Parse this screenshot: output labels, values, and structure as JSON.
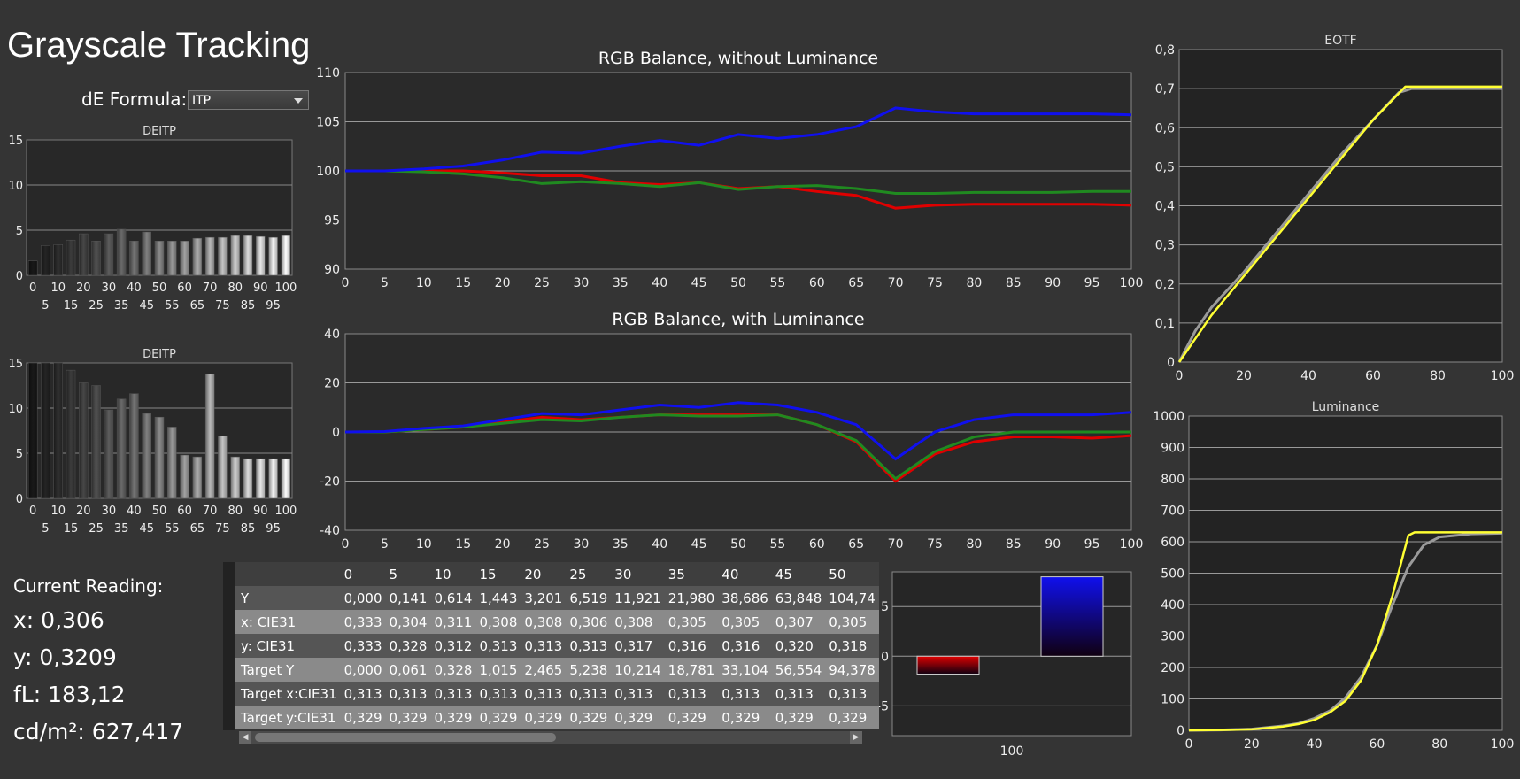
{
  "title": "Grayscale Tracking",
  "de_formula": {
    "label": "dE Formula:",
    "value": "ITP"
  },
  "current_reading": {
    "heading": "Current Reading:",
    "x": "x: 0,306",
    "y": "y: 0,3209",
    "fl": "fL: 183,12",
    "cdm2": "cd/m²: 627,417"
  },
  "colors": {
    "red": "#e00000",
    "green": "#208a20",
    "blue": "#1010ee",
    "yellow": "#ffff33",
    "gray_ref": "#9a9a9a"
  },
  "chart_data": [
    {
      "id": "deitp-top",
      "type": "bar",
      "title": "DEITP",
      "categories": [
        "0",
        "5",
        "10",
        "15",
        "20",
        "25",
        "30",
        "35",
        "40",
        "45",
        "50",
        "55",
        "60",
        "65",
        "70",
        "75",
        "80",
        "85",
        "90",
        "95",
        "100"
      ],
      "values": [
        1.6,
        3.3,
        3.4,
        3.9,
        4.6,
        3.8,
        4.6,
        5.1,
        3.8,
        4.8,
        3.8,
        3.8,
        3.8,
        4.1,
        4.2,
        4.2,
        4.4,
        4.4,
        4.3,
        4.2,
        4.4
      ],
      "ylim": [
        0,
        15
      ],
      "yticks": [
        "0",
        "5",
        "10",
        "15"
      ],
      "xticks_top": [
        "0",
        "10",
        "20",
        "30",
        "40",
        "50",
        "60",
        "70",
        "80",
        "90",
        "100"
      ],
      "xticks_bottom": [
        "5",
        "15",
        "25",
        "35",
        "45",
        "55",
        "65",
        "75",
        "85",
        "95"
      ]
    },
    {
      "id": "deitp-bottom",
      "type": "bar",
      "title": "DEITP",
      "categories": [
        "0",
        "5",
        "10",
        "15",
        "20",
        "25",
        "30",
        "35",
        "40",
        "45",
        "50",
        "55",
        "60",
        "65",
        "70",
        "75",
        "80",
        "85",
        "90",
        "95",
        "100"
      ],
      "values": [
        15,
        15,
        15,
        14.2,
        12.8,
        12.5,
        9.8,
        11,
        11.6,
        9.4,
        9,
        7.9,
        4.8,
        4.6,
        13.8,
        6.9,
        4.6,
        4.4,
        4.4,
        4.4,
        4.4
      ],
      "ylim": [
        0,
        15
      ],
      "yticks": [
        "0",
        "5",
        "10",
        "15"
      ],
      "xticks_top": [
        "0",
        "10",
        "20",
        "30",
        "40",
        "50",
        "60",
        "70",
        "80",
        "90",
        "100"
      ],
      "xticks_bottom": [
        "5",
        "15",
        "25",
        "35",
        "45",
        "55",
        "65",
        "75",
        "85",
        "95"
      ]
    },
    {
      "id": "rgb-no-lum",
      "type": "line",
      "title": "RGB Balance, without Luminance",
      "x": [
        0,
        5,
        10,
        15,
        20,
        25,
        30,
        35,
        40,
        45,
        50,
        55,
        60,
        65,
        70,
        75,
        80,
        85,
        90,
        95,
        100
      ],
      "xticks": [
        "0",
        "5",
        "10",
        "15",
        "20",
        "25",
        "30",
        "35",
        "40",
        "45",
        "50",
        "55",
        "60",
        "65",
        "70",
        "75",
        "80",
        "85",
        "90",
        "95",
        "100"
      ],
      "yticks": [
        "90",
        "95",
        "100",
        "105",
        "110"
      ],
      "ylim": [
        90,
        110
      ],
      "series": [
        {
          "color": "#e00000",
          "values": [
            100,
            100,
            100,
            100,
            99.8,
            99.5,
            99.5,
            98.8,
            98.6,
            98.8,
            98.2,
            98.4,
            97.9,
            97.5,
            96.2,
            96.5,
            96.6,
            96.6,
            96.6,
            96.6,
            96.5
          ]
        },
        {
          "color": "#208a20",
          "values": [
            100,
            100,
            99.9,
            99.7,
            99.3,
            98.7,
            98.9,
            98.7,
            98.4,
            98.8,
            98.1,
            98.4,
            98.5,
            98.2,
            97.7,
            97.7,
            97.8,
            97.8,
            97.8,
            97.9,
            97.9
          ]
        },
        {
          "color": "#1010ee",
          "values": [
            100,
            100,
            100.2,
            100.5,
            101.1,
            101.9,
            101.8,
            102.5,
            103.1,
            102.6,
            103.7,
            103.3,
            103.7,
            104.5,
            106.4,
            106,
            105.8,
            105.8,
            105.8,
            105.8,
            105.7
          ]
        }
      ]
    },
    {
      "id": "rgb-lum",
      "type": "line",
      "title": "RGB Balance, with Luminance",
      "x": [
        0,
        5,
        10,
        15,
        20,
        25,
        30,
        35,
        40,
        45,
        50,
        55,
        60,
        65,
        70,
        75,
        80,
        85,
        90,
        95,
        100
      ],
      "xticks": [
        "0",
        "5",
        "10",
        "15",
        "20",
        "25",
        "30",
        "35",
        "40",
        "45",
        "50",
        "55",
        "60",
        "65",
        "70",
        "75",
        "80",
        "85",
        "90",
        "95",
        "100"
      ],
      "yticks": [
        "-40",
        "-20",
        "0",
        "20",
        "40"
      ],
      "ylim": [
        -40,
        40
      ],
      "series": [
        {
          "color": "#e00000",
          "values": [
            0,
            0,
            1,
            2,
            4,
            6,
            5,
            6,
            7,
            7,
            7,
            7,
            3,
            -4,
            -20,
            -9,
            -4,
            -2,
            -2,
            -2.5,
            -1.5
          ]
        },
        {
          "color": "#208a20",
          "values": [
            0,
            0,
            1,
            2,
            3.5,
            5,
            4.5,
            6,
            7,
            6.5,
            6.5,
            7,
            3,
            -3.5,
            -19,
            -8,
            -2,
            0,
            0,
            0,
            0
          ]
        },
        {
          "color": "#1010ee",
          "values": [
            0,
            0.2,
            1.5,
            2.5,
            5,
            7.5,
            7,
            9,
            11,
            10,
            12,
            11,
            8,
            3,
            -11,
            0,
            5,
            7,
            7,
            7,
            8
          ]
        }
      ]
    },
    {
      "id": "eotf",
      "type": "line",
      "title": "EOTF",
      "xticks": [
        "0",
        "20",
        "40",
        "60",
        "80",
        "100"
      ],
      "yticks": [
        "0",
        "0,1",
        "0,2",
        "0,3",
        "0,4",
        "0,5",
        "0,6",
        "0,7",
        "0,8"
      ],
      "xlim": [
        0,
        100
      ],
      "ylim": [
        0,
        0.8
      ],
      "series": [
        {
          "color": "#9a9a9a",
          "x": [
            0,
            5,
            10,
            20,
            30,
            40,
            50,
            60,
            68,
            72,
            100
          ],
          "values": [
            0,
            0.08,
            0.14,
            0.23,
            0.33,
            0.43,
            0.53,
            0.62,
            0.69,
            0.7,
            0.7
          ]
        },
        {
          "color": "#ffff33",
          "x": [
            0,
            5,
            10,
            20,
            30,
            40,
            50,
            60,
            70,
            72,
            100
          ],
          "values": [
            0,
            0.06,
            0.12,
            0.22,
            0.32,
            0.42,
            0.52,
            0.62,
            0.705,
            0.705,
            0.705
          ]
        }
      ]
    },
    {
      "id": "luminance",
      "type": "line",
      "title": "Luminance",
      "xticks": [
        "0",
        "20",
        "40",
        "60",
        "80",
        "100"
      ],
      "yticks": [
        "0",
        "100",
        "200",
        "300",
        "400",
        "500",
        "600",
        "700",
        "800",
        "900",
        "1000"
      ],
      "xlim": [
        0,
        100
      ],
      "ylim": [
        0,
        1000
      ],
      "series": [
        {
          "color": "#9a9a9a",
          "x": [
            0,
            10,
            20,
            30,
            35,
            40,
            45,
            50,
            55,
            60,
            65,
            70,
            75,
            80,
            90,
            100
          ],
          "values": [
            0,
            1,
            4,
            14,
            22,
            38,
            62,
            104,
            170,
            270,
            400,
            520,
            590,
            615,
            625,
            627
          ]
        },
        {
          "color": "#ffff33",
          "x": [
            0,
            10,
            20,
            30,
            35,
            40,
            45,
            50,
            55,
            60,
            65,
            70,
            72,
            80,
            90,
            100
          ],
          "values": [
            0,
            1,
            3,
            12,
            20,
            33,
            57,
            94,
            160,
            270,
            430,
            620,
            630,
            630,
            630,
            630
          ]
        }
      ]
    },
    {
      "id": "rgb-bars-100",
      "type": "bar",
      "categories": [
        "100"
      ],
      "series": [
        {
          "color": "#e00000",
          "values": [
            -1.8
          ]
        },
        {
          "color": "#1010ee",
          "values": [
            8
          ]
        }
      ],
      "ylim": [
        -8,
        8.5
      ],
      "yticks": [
        "-5",
        "0",
        "5"
      ]
    }
  ],
  "table": {
    "headers": [
      "",
      "0",
      "5",
      "10",
      "15",
      "20",
      "25",
      "30",
      "35",
      "40",
      "45",
      "50"
    ],
    "rows": [
      {
        "label": "Y",
        "values": [
          "0,000",
          "0,141",
          "0,614",
          "1,443",
          "3,201",
          "6,519",
          "11,921",
          "21,980",
          "38,686",
          "63,848",
          "104,74"
        ]
      },
      {
        "label": "x: CIE31",
        "values": [
          "0,333",
          "0,304",
          "0,311",
          "0,308",
          "0,308",
          "0,306",
          "0,308",
          "0,305",
          "0,305",
          "0,307",
          "0,305"
        ]
      },
      {
        "label": "y: CIE31",
        "values": [
          "0,333",
          "0,328",
          "0,312",
          "0,313",
          "0,313",
          "0,313",
          "0,317",
          "0,316",
          "0,316",
          "0,320",
          "0,318"
        ]
      },
      {
        "label": "Target Y",
        "values": [
          "0,000",
          "0,061",
          "0,328",
          "1,015",
          "2,465",
          "5,238",
          "10,214",
          "18,781",
          "33,104",
          "56,554",
          "94,378"
        ]
      },
      {
        "label": "Target x:CIE31",
        "values": [
          "0,313",
          "0,313",
          "0,313",
          "0,313",
          "0,313",
          "0,313",
          "0,313",
          "0,313",
          "0,313",
          "0,313",
          "0,313"
        ]
      },
      {
        "label": "Target y:CIE31",
        "values": [
          "0,329",
          "0,329",
          "0,329",
          "0,329",
          "0,329",
          "0,329",
          "0,329",
          "0,329",
          "0,329",
          "0,329",
          "0,329"
        ]
      }
    ]
  }
}
